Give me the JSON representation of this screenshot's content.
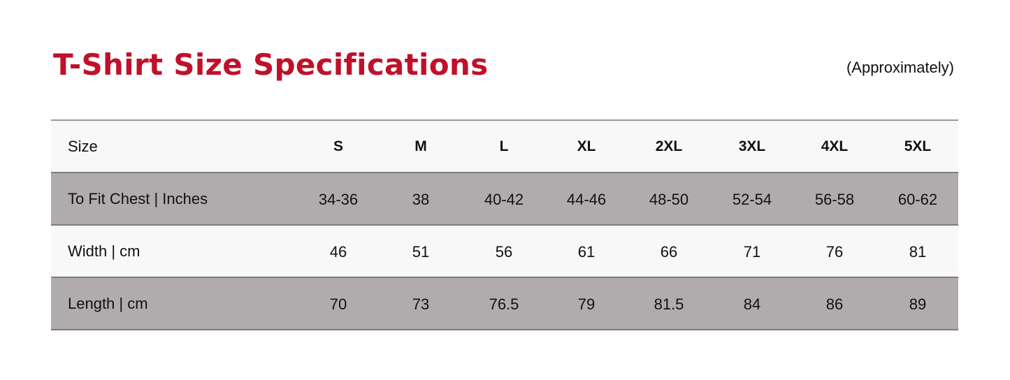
{
  "title": "T-Shirt Size Specifications",
  "note": "(Approximately)",
  "colors": {
    "title": "#c0102a",
    "shaded_row": "#b0acae",
    "light_row": "#f7f8f7"
  },
  "table": {
    "header": {
      "label": "Size",
      "values": [
        "S",
        "M",
        "L",
        "XL",
        "2XL",
        "3XL",
        "4XL",
        "5XL"
      ]
    },
    "rows": [
      {
        "label": "To Fit Chest | Inches",
        "values": [
          "34-36",
          "38",
          "40-42",
          "44-46",
          "48-50",
          "52-54",
          "56-58",
          "60-62"
        ]
      },
      {
        "label": "Width | cm",
        "values": [
          "46",
          "51",
          "56",
          "61",
          "66",
          "71",
          "76",
          "81"
        ]
      },
      {
        "label": "Length | cm",
        "values": [
          "70",
          "73",
          "76.5",
          "79",
          "81.5",
          "84",
          "86",
          "89"
        ]
      }
    ]
  }
}
